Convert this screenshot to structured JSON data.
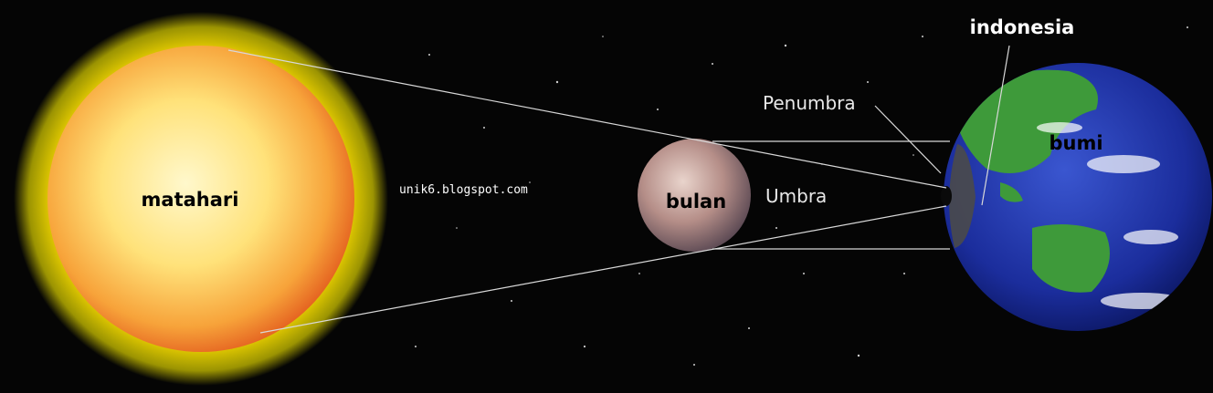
{
  "labels": {
    "sun": "matahari",
    "moon": "bulan",
    "earth": "bumi",
    "location": "indonesia",
    "penumbra": "Penumbra",
    "umbra": "Umbra",
    "watermark": "unik6.blogspot.com"
  },
  "colors": {
    "space": "#050505",
    "sun_core": "#fff3b0",
    "sun_edge": "#e8561c",
    "corona": "#ffe100",
    "moon": "#c9a7a0",
    "ocean": "#1b2d9c",
    "land": "#3e9a3a",
    "shadow_lines": "#d8d8d8"
  }
}
